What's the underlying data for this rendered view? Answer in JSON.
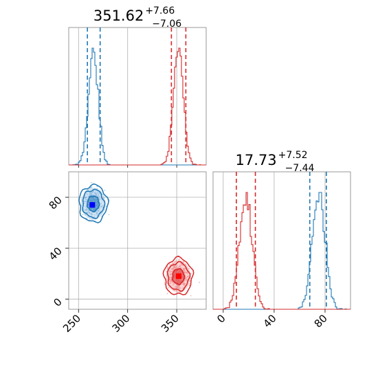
{
  "chart_data": {
    "type": "corner",
    "grid": true,
    "parameters": [
      {
        "range": [
          240,
          380
        ],
        "ticks": [
          250,
          300,
          350
        ],
        "tick_labels": [
          "250",
          "300",
          "350"
        ],
        "title": {
          "median": "351.62",
          "plus": "+7.66",
          "minus": "−7.06"
        }
      },
      {
        "range": [
          -8,
          100
        ],
        "ticks": [
          0,
          40,
          80
        ],
        "tick_labels": [
          "0",
          "40",
          "80"
        ],
        "title": {
          "median": "17.73",
          "plus": "+7.52",
          "minus": "−7.44"
        }
      }
    ],
    "series": [
      {
        "color": "#1f77b4",
        "fill": "#7fb3de",
        "p1_center": 265,
        "p1_sigma": 5,
        "p1_quantiles": [
          259,
          265,
          272
        ],
        "p2_center": 75,
        "p2_sigma": 5,
        "p2_quantiles": [
          68,
          75,
          81
        ],
        "marker": {
          "x": 264,
          "y": 74,
          "color": "#0000ff"
        }
      },
      {
        "color": "#d62728",
        "fill": "#f08080",
        "p1_center": 351.62,
        "p1_sigma": 5,
        "p1_quantiles": [
          344.56,
          351.62,
          359.28
        ],
        "p2_center": 17.73,
        "p2_sigma": 5,
        "p2_quantiles": [
          10.29,
          17.73,
          25.25
        ],
        "marker": {
          "x": 352,
          "y": 18,
          "color": "#ff0000"
        }
      }
    ]
  }
}
